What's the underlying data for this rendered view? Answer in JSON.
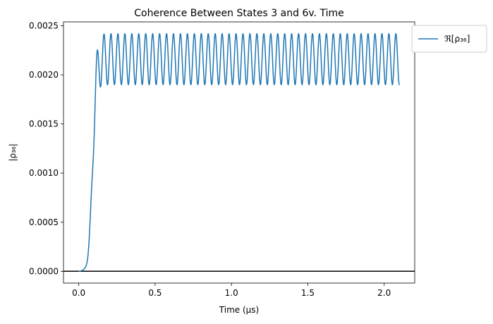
{
  "chart_data": {
    "type": "line",
    "title": "Coherence Between States 3 and 6v. Time",
    "xlabel": "Time (μs)",
    "ylabel": "|ρ₃₆|",
    "xlim": [
      -0.1,
      2.2
    ],
    "ylim": [
      -0.00012,
      0.00254
    ],
    "xticks": [
      0.0,
      0.5,
      1.0,
      1.5,
      2.0
    ],
    "xtick_labels": [
      "0.0",
      "0.5",
      "1.0",
      "1.5",
      "2.0"
    ],
    "yticks": [
      0.0,
      0.0005,
      0.001,
      0.0015,
      0.002,
      0.0025
    ],
    "ytick_labels": [
      "0.0000",
      "0.0005",
      "0.0010",
      "0.0015",
      "0.0020",
      "0.0025"
    ],
    "grid": false,
    "hlines": [
      {
        "y": 0.0,
        "color": "#000000"
      }
    ],
    "legend": {
      "position": "outside-top-right",
      "entries": [
        "ℜ[ρ₃₆]"
      ]
    },
    "series": [
      {
        "name": "ℜ[ρ₃₆]",
        "color": "#1f77b4",
        "model": {
          "x_start": 0.0,
          "x_end": 2.1,
          "rise_center": 0.09,
          "rise_width": 0.012,
          "mean_value": 0.00216,
          "oscillation_amplitude": 0.00026,
          "period": 0.0455,
          "first_peak_x": 0.12
        },
        "points": [
          [
            0.0,
            0.0
          ],
          [
            0.04,
            5e-06
          ],
          [
            0.06,
            3e-05
          ],
          [
            0.07,
            0.0001
          ],
          [
            0.08,
            0.00035
          ],
          [
            0.09,
            0.0011
          ],
          [
            0.1,
            0.0019
          ],
          [
            0.11,
            0.00225
          ],
          [
            0.12,
            0.00232
          ],
          [
            0.145,
            0.0019
          ],
          [
            0.167,
            0.0024
          ],
          [
            2.1,
            0.00195
          ]
        ]
      }
    ]
  }
}
